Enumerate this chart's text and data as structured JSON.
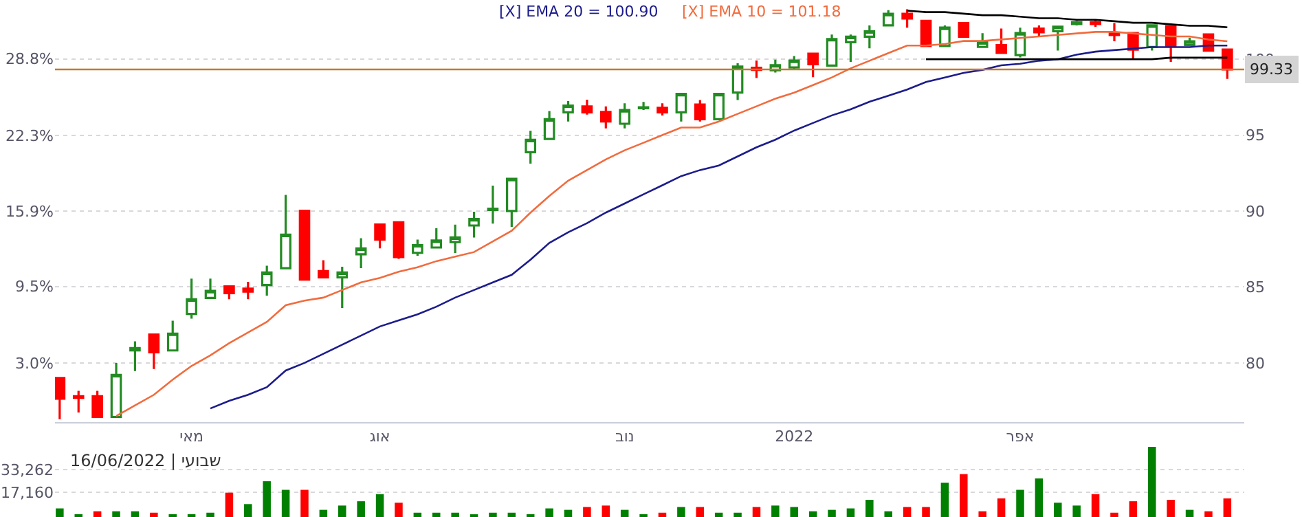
{
  "chart_data": [
    {
      "type": "candlestick",
      "categories": [
        null,
        null,
        null,
        null,
        null,
        null,
        null,
        "מאי",
        null,
        null,
        null,
        null,
        null,
        null,
        null,
        null,
        null,
        "אוג",
        null,
        null,
        null,
        null,
        null,
        null,
        null,
        null,
        null,
        null,
        null,
        null,
        "נוב",
        null,
        null,
        null,
        null,
        null,
        null,
        null,
        null,
        "2022",
        null,
        null,
        null,
        null,
        null,
        null,
        null,
        null,
        null,
        null,
        null,
        "אפר",
        null,
        null,
        null,
        null,
        null,
        null,
        null,
        null,
        null,
        null,
        null
      ],
      "ohlc": [
        [
          79.0,
          79.0,
          76.29,
          77.65
        ],
        [
          77.8,
          78.16,
          76.74,
          77.7
        ],
        [
          77.8,
          78.16,
          76.44,
          76.44
        ],
        [
          76.44,
          80.0,
          76.44,
          79.21
        ],
        [
          80.82,
          81.42,
          79.46,
          80.97
        ],
        [
          81.87,
          81.87,
          79.6,
          80.7
        ],
        [
          80.82,
          82.78,
          80.82,
          81.93
        ],
        [
          83.23,
          85.55,
          82.92,
          84.19
        ],
        [
          84.28,
          85.55,
          84.23,
          84.74
        ],
        [
          85.04,
          85.04,
          84.19,
          84.59
        ],
        [
          84.89,
          85.34,
          84.19,
          84.7
        ],
        [
          85.13,
          86.4,
          84.43,
          85.95
        ],
        [
          86.24,
          91.07,
          86.24,
          88.44
        ],
        [
          90.02,
          90.02,
          85.49,
          85.49
        ],
        [
          86.04,
          86.76,
          85.64,
          85.64
        ],
        [
          85.64,
          86.33,
          83.62,
          85.95
        ],
        [
          87.15,
          88.21,
          86.24,
          87.54
        ],
        [
          89.11,
          89.11,
          87.54,
          88.12
        ],
        [
          89.26,
          89.26,
          86.85,
          86.97
        ],
        [
          87.25,
          88.12,
          87.06,
          87.76
        ],
        [
          87.6,
          88.87,
          87.6,
          88.06
        ],
        [
          87.96,
          89.11,
          87.24,
          88.26
        ],
        [
          89.05,
          89.95,
          88.26,
          89.47
        ],
        [
          90.07,
          91.67,
          89.17,
          90.16
        ],
        [
          90.01,
          92.12,
          88.96,
          92.12
        ],
        [
          93.88,
          95.29,
          93.12,
          94.69
        ],
        [
          94.75,
          96.59,
          94.75,
          96.05
        ],
        [
          96.5,
          97.25,
          95.9,
          96.95
        ],
        [
          96.89,
          97.34,
          96.35,
          96.5
        ],
        [
          96.53,
          96.89,
          95.44,
          95.9
        ],
        [
          95.75,
          97.1,
          95.44,
          96.65
        ],
        [
          96.77,
          97.19,
          96.65,
          96.83
        ],
        [
          96.8,
          97.1,
          96.29,
          96.5
        ],
        [
          96.5,
          97.71,
          95.9,
          97.71
        ],
        [
          97.01,
          97.31,
          95.9,
          96.05
        ],
        [
          96.05,
          97.71,
          96.05,
          97.71
        ],
        [
          97.8,
          99.73,
          97.31,
          99.52
        ],
        [
          99.43,
          99.91,
          98.76,
          99.3
        ],
        [
          99.27,
          99.97,
          99.12,
          99.61
        ],
        [
          99.46,
          100.21,
          99.3,
          99.91
        ],
        [
          100.36,
          100.36,
          98.82,
          99.67
        ],
        [
          99.58,
          101.63,
          99.58,
          101.33
        ],
        [
          101.12,
          101.63,
          99.82,
          101.48
        ],
        [
          101.48,
          102.23,
          100.72,
          101.84
        ],
        [
          102.23,
          103.23,
          102.17,
          102.99
        ],
        [
          102.99,
          103.29,
          102.08,
          102.68
        ],
        [
          102.53,
          102.53,
          100.87,
          100.87
        ],
        [
          100.87,
          102.23,
          100.87,
          102.08
        ],
        [
          102.38,
          102.38,
          101.48,
          101.48
        ],
        [
          100.81,
          101.72,
          100.81,
          101.12
        ],
        [
          100.93,
          102.02,
          100.42,
          100.42
        ],
        [
          100.27,
          102.08,
          100.12,
          101.72
        ],
        [
          102.02,
          102.23,
          101.48,
          101.78
        ],
        [
          101.84,
          102.14,
          100.57,
          102.14
        ],
        [
          102.32,
          102.53,
          102.23,
          102.44
        ],
        [
          102.44,
          102.62,
          102.14,
          102.32
        ],
        [
          101.72,
          102.38,
          101.18,
          101.6
        ],
        [
          101.72,
          101.72,
          99.97,
          100.63
        ],
        [
          100.81,
          102.23,
          100.57,
          102.23
        ],
        [
          102.17,
          102.17,
          99.82,
          100.87
        ],
        [
          100.93,
          101.42,
          100.87,
          101.18
        ],
        [
          101.63,
          101.63,
          100.57,
          100.57
        ],
        [
          100.63,
          100.63,
          98.7,
          99.33
        ]
      ],
      "colors": [
        "#ff0000",
        "#ff0000",
        "#ff0000",
        "#228b22",
        "#228b22",
        "#ff0000",
        "#228b22",
        "#228b22",
        "#228b22",
        "#ff0000",
        "#ff0000",
        "#228b22",
        "#228b22",
        "#ff0000",
        "#ff0000",
        "#228b22",
        "#228b22",
        "#ff0000",
        "#ff0000",
        "#228b22",
        "#228b22",
        "#228b22",
        "#228b22",
        "#228b22",
        "#228b22",
        "#228b22",
        "#228b22",
        "#228b22",
        "#ff0000",
        "#ff0000",
        "#228b22",
        "#228b22",
        "#ff0000",
        "#228b22",
        "#ff0000",
        "#228b22",
        "#228b22",
        "#ff0000",
        "#228b22",
        "#228b22",
        "#ff0000",
        "#228b22",
        "#228b22",
        "#228b22",
        "#228b22",
        "#ff0000",
        "#ff0000",
        "#228b22",
        "#ff0000",
        "#228b22",
        "#ff0000",
        "#228b22",
        "#ff0000",
        "#228b22",
        "#228b22",
        "#ff0000",
        "#ff0000",
        "#ff0000",
        "#228b22",
        "#ff0000",
        "#228b22",
        "#ff0000",
        "#ff0000"
      ],
      "series": [
        {
          "name": "[X] EMA 20 = 100.90",
          "color": "#1c1c8c",
          "type": "line",
          "values": [
            null,
            null,
            null,
            null,
            null,
            null,
            null,
            null,
            77.0,
            77.5,
            77.9,
            78.4,
            79.5,
            80.0,
            80.6,
            81.2,
            81.8,
            82.4,
            82.8,
            83.2,
            83.7,
            84.3,
            84.8,
            85.3,
            85.8,
            86.8,
            87.9,
            88.6,
            89.2,
            89.9,
            90.5,
            91.1,
            91.7,
            92.3,
            92.7,
            93.0,
            93.6,
            94.2,
            94.7,
            95.3,
            95.8,
            96.3,
            96.7,
            97.2,
            97.6,
            98.0,
            98.5,
            98.8,
            99.1,
            99.3,
            99.6,
            99.7,
            99.9,
            100.0,
            100.3,
            100.5,
            100.6,
            100.7,
            100.8,
            100.8,
            100.8,
            100.9,
            100.9
          ]
        },
        {
          "name": "[X] EMA 10 = 101.18",
          "color": "#f26b3d",
          "type": "line",
          "values": [
            null,
            null,
            null,
            76.5,
            77.2,
            77.9,
            78.9,
            79.8,
            80.5,
            81.3,
            82.0,
            82.7,
            83.8,
            84.1,
            84.3,
            84.8,
            85.3,
            85.6,
            86.0,
            86.3,
            86.7,
            87.0,
            87.3,
            88.0,
            88.7,
            89.9,
            91.0,
            92.0,
            92.7,
            93.4,
            94.0,
            94.5,
            95.0,
            95.5,
            95.5,
            95.9,
            96.4,
            96.9,
            97.4,
            97.8,
            98.3,
            98.8,
            99.4,
            99.9,
            100.4,
            100.9,
            100.9,
            101.0,
            101.2,
            101.2,
            101.3,
            101.4,
            101.5,
            101.6,
            101.7,
            101.8,
            101.8,
            101.7,
            101.6,
            101.5,
            101.5,
            101.3,
            101.18
          ]
        },
        {
          "color": "#000000",
          "type": "line",
          "values": [
            null,
            null,
            null,
            null,
            null,
            null,
            null,
            null,
            null,
            null,
            null,
            null,
            null,
            null,
            null,
            null,
            null,
            null,
            null,
            null,
            null,
            null,
            null,
            null,
            null,
            null,
            null,
            null,
            null,
            null,
            null,
            null,
            null,
            null,
            null,
            null,
            null,
            null,
            null,
            null,
            null,
            null,
            null,
            null,
            null,
            103.2,
            103.1,
            103.1,
            103.0,
            102.9,
            102.9,
            102.8,
            102.7,
            102.7,
            102.6,
            102.6,
            102.5,
            102.4,
            102.4,
            102.3,
            102.2,
            102.2,
            102.1
          ]
        },
        {
          "color": "#000000",
          "type": "line",
          "values": [
            null,
            null,
            null,
            null,
            null,
            null,
            null,
            null,
            null,
            null,
            null,
            null,
            null,
            null,
            null,
            null,
            null,
            null,
            null,
            null,
            null,
            null,
            null,
            null,
            null,
            null,
            null,
            null,
            null,
            null,
            null,
            null,
            null,
            null,
            null,
            null,
            null,
            null,
            null,
            null,
            null,
            null,
            null,
            null,
            null,
            null,
            100.0,
            100.0,
            100.0,
            100.0,
            100.0,
            100.0,
            100.0,
            100.0,
            100.0,
            100.0,
            100.0,
            100.0,
            100.0,
            100.1,
            100.1,
            100.1,
            100.1
          ]
        }
      ],
      "ylim": [
        76.1,
        103.9
      ],
      "yticks": [
        80,
        85,
        90,
        95,
        100
      ],
      "y2lim": [
        -2.0,
        33.8
      ],
      "y2ticks": [
        {
          "value": 3.0,
          "label": "3.0%"
        },
        {
          "value": 9.5,
          "label": "9.5%"
        },
        {
          "value": 15.9,
          "label": "15.9%"
        },
        {
          "value": 22.3,
          "label": "22.3%"
        },
        {
          "value": 28.8,
          "label": "28.8%"
        }
      ],
      "ref_lines": [
        {
          "axis": "y",
          "value": 99.33,
          "label": "99.33",
          "color": "#c8782f"
        }
      ],
      "grid": "y",
      "legend": "top",
      "marker": "none",
      "line_style": "solid"
    },
    {
      "type": "bar",
      "categories": [
        null,
        null,
        null,
        null,
        null,
        null,
        null,
        null,
        null,
        null,
        null,
        null,
        null,
        null,
        null,
        null,
        null,
        null,
        null,
        null,
        null,
        null,
        null,
        null,
        null,
        null,
        null,
        null,
        null,
        null,
        null,
        null,
        null,
        null,
        null,
        null,
        null,
        null,
        null,
        null,
        null,
        null,
        null,
        null,
        null,
        null,
        null,
        null,
        null,
        null,
        null,
        null,
        null,
        null,
        null,
        null,
        null,
        null,
        null,
        null,
        null,
        null,
        null
      ],
      "values": [
        6000,
        2000,
        4000,
        4000,
        4000,
        3000,
        2000,
        2000,
        3000,
        17000,
        9000,
        25000,
        19000,
        19000,
        5000,
        8000,
        11000,
        16000,
        10000,
        3000,
        3000,
        3000,
        1000,
        3000,
        3000,
        2000,
        6000,
        5000,
        7000,
        8000,
        5000,
        2000,
        3000,
        7000,
        7000,
        3000,
        3000,
        7000,
        8000,
        7000,
        4000,
        5000,
        6000,
        12000,
        4000,
        7000,
        7000,
        24000,
        30000,
        4000,
        13000,
        19000,
        27000,
        10000,
        8000,
        16000,
        3000,
        11000,
        49000,
        12000,
        5000,
        4000,
        13000
      ],
      "colors": [
        "#008000",
        "#008000",
        "#ff0000",
        "#008000",
        "#008000",
        "#ff0000",
        "#008000",
        "#008000",
        "#008000",
        "#ff0000",
        "#008000",
        "#008000",
        "#008000",
        "#ff0000",
        "#008000",
        "#008000",
        "#008000",
        "#008000",
        "#ff0000",
        "#008000",
        "#008000",
        "#008000",
        "#008000",
        "#008000",
        "#008000",
        "#008000",
        "#008000",
        "#008000",
        "#ff0000",
        "#ff0000",
        "#008000",
        "#008000",
        "#ff0000",
        "#008000",
        "#ff0000",
        "#008000",
        "#008000",
        "#ff0000",
        "#008000",
        "#008000",
        "#008000",
        "#008000",
        "#008000",
        "#008000",
        "#008000",
        "#ff0000",
        "#ff0000",
        "#008000",
        "#ff0000",
        "#ff0000",
        "#ff0000",
        "#008000",
        "#008000",
        "#008000",
        "#008000",
        "#ff0000",
        "#ff0000",
        "#ff0000",
        "#008000",
        "#ff0000",
        "#008000",
        "#ff0000",
        "#ff0000"
      ],
      "ylim": [
        0,
        49000
      ],
      "yticks": [
        {
          "value": 17160,
          "label": "17,160"
        },
        {
          "value": 33262,
          "label": "33,262"
        }
      ],
      "annotations": [
        "שבועי | 16/06/2022"
      ],
      "grid": "y",
      "tick_labels": "y"
    }
  ]
}
